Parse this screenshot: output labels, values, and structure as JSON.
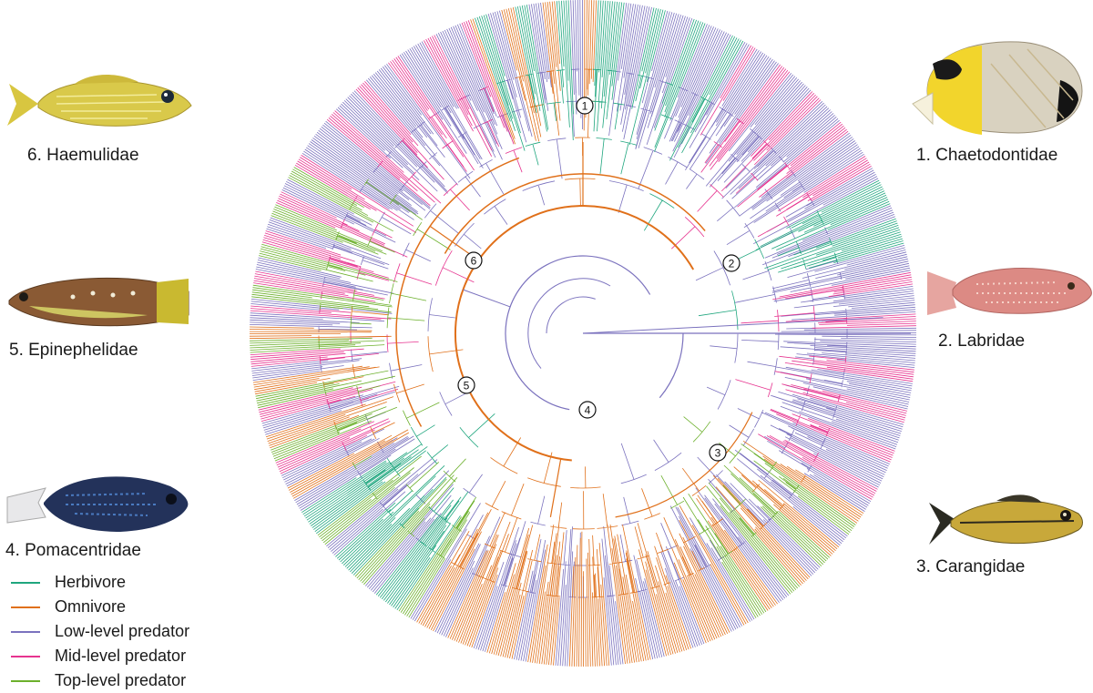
{
  "colors": {
    "herbivore": "#1fa67e",
    "omnivore": "#e0701a",
    "low_level_predator": "#7b72be",
    "mid_level_predator": "#e6338f",
    "top_level_predator": "#6cb02c"
  },
  "families": [
    {
      "number": "1",
      "label": "1. Chaetodontidae",
      "icon": "butterflyfish-photo"
    },
    {
      "number": "2",
      "label": "2. Labridae",
      "icon": "wrasse-photo"
    },
    {
      "number": "3",
      "label": "3. Carangidae",
      "icon": "jack-photo"
    },
    {
      "number": "4",
      "label": "4. Pomacentridae",
      "icon": "damselfish-photo"
    },
    {
      "number": "5",
      "label": "5. Epinephelidae",
      "icon": "grouper-photo"
    },
    {
      "number": "6",
      "label": "6. Haemulidae",
      "icon": "grunt-photo"
    }
  ],
  "legend": [
    {
      "label": "Herbivore",
      "color": "#1fa67e"
    },
    {
      "label": "Omnivore",
      "color": "#e0701a"
    },
    {
      "label": "Low-level predator",
      "color": "#7b72be"
    },
    {
      "label": "Mid-level predator",
      "color": "#e6338f"
    },
    {
      "label": "Top-level predator",
      "color": "#6cb02c"
    }
  ]
}
